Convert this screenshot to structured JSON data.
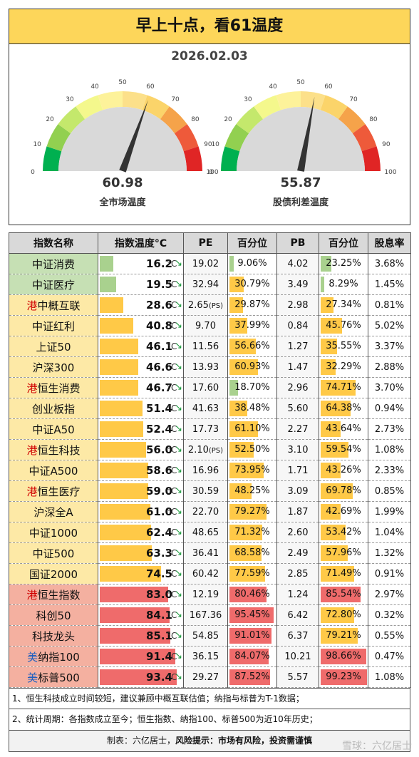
{
  "title": "早上十点，看61温度",
  "date": "2026.02.03",
  "chart_data": [
    {
      "type": "gauge",
      "value": 60.98,
      "label": "全市场温度",
      "ticks": [
        0,
        10,
        20,
        30,
        40,
        50,
        60,
        70,
        80,
        90,
        100
      ]
    },
    {
      "type": "gauge",
      "value": 55.87,
      "label": "股债利差温度",
      "ticks": [
        0,
        10,
        20,
        30,
        40,
        50,
        60,
        70,
        80,
        90,
        100
      ]
    },
    {
      "type": "table",
      "headers": [
        "指数名称",
        "指数温度°C",
        "PE",
        "百分位",
        "PB",
        "百分位",
        "股息率"
      ],
      "temp_unit": "°C",
      "rows": [
        {
          "prefix": "",
          "name": "中证消费",
          "temp": 16.2,
          "pe": "19.02",
          "pe_tag": "",
          "pe_pct": 9.06,
          "pb": "4.02",
          "pb_pct": 23.25,
          "dy": "3.68%"
        },
        {
          "prefix": "",
          "name": "中证医疗",
          "temp": 19.5,
          "pe": "32.94",
          "pe_tag": "",
          "pe_pct": 30.79,
          "pb": "3.49",
          "pb_pct": 8.29,
          "dy": "1.45%"
        },
        {
          "prefix": "港",
          "name": "中概互联",
          "temp": 28.6,
          "pe": "2.65",
          "pe_tag": "(PS)",
          "pe_pct": 29.87,
          "pb": "2.98",
          "pb_pct": 27.34,
          "dy": "0.81%"
        },
        {
          "prefix": "",
          "name": "中证红利",
          "temp": 40.8,
          "pe": "9.70",
          "pe_tag": "",
          "pe_pct": 37.99,
          "pb": "0.84",
          "pb_pct": 45.76,
          "dy": "5.02%"
        },
        {
          "prefix": "",
          "name": "上证50",
          "temp": 46.1,
          "pe": "11.56",
          "pe_tag": "",
          "pe_pct": 56.66,
          "pb": "1.27",
          "pb_pct": 35.55,
          "dy": "3.37%"
        },
        {
          "prefix": "",
          "name": "沪深300",
          "temp": 46.6,
          "pe": "13.93",
          "pe_tag": "",
          "pe_pct": 60.93,
          "pb": "1.47",
          "pb_pct": 32.29,
          "dy": "2.88%"
        },
        {
          "prefix": "港",
          "name": "恒生消费",
          "temp": 46.7,
          "pe": "17.60",
          "pe_tag": "",
          "pe_pct": 18.7,
          "pb": "2.96",
          "pb_pct": 74.71,
          "dy": "3.70%"
        },
        {
          "prefix": "",
          "name": "创业板指",
          "temp": 51.4,
          "pe": "41.63",
          "pe_tag": "",
          "pe_pct": 38.48,
          "pb": "5.60",
          "pb_pct": 64.38,
          "dy": "0.94%"
        },
        {
          "prefix": "",
          "name": "中证A50",
          "temp": 52.4,
          "pe": "17.73",
          "pe_tag": "",
          "pe_pct": 61.1,
          "pb": "2.27",
          "pb_pct": 43.64,
          "dy": "2.73%"
        },
        {
          "prefix": "港",
          "name": "恒生科技",
          "temp": 56.0,
          "pe": "2.10",
          "pe_tag": "(PS)",
          "pe_pct": 52.5,
          "pb": "3.10",
          "pb_pct": 59.54,
          "dy": "1.08%"
        },
        {
          "prefix": "",
          "name": "中证A500",
          "temp": 58.6,
          "pe": "16.96",
          "pe_tag": "",
          "pe_pct": 73.95,
          "pb": "1.71",
          "pb_pct": 43.26,
          "dy": "2.33%"
        },
        {
          "prefix": "港",
          "name": "恒生医疗",
          "temp": 59.0,
          "pe": "30.59",
          "pe_tag": "",
          "pe_pct": 48.25,
          "pb": "3.09",
          "pb_pct": 69.78,
          "dy": "0.85%"
        },
        {
          "prefix": "",
          "name": "沪深全A",
          "temp": 61.0,
          "pe": "22.70",
          "pe_tag": "",
          "pe_pct": 79.27,
          "pb": "1.87",
          "pb_pct": 42.69,
          "dy": "1.99%"
        },
        {
          "prefix": "",
          "name": "中证1000",
          "temp": 62.4,
          "pe": "48.65",
          "pe_tag": "",
          "pe_pct": 71.32,
          "pb": "2.60",
          "pb_pct": 53.42,
          "dy": "1.04%"
        },
        {
          "prefix": "",
          "name": "中证500",
          "temp": 63.3,
          "pe": "36.41",
          "pe_tag": "",
          "pe_pct": 68.58,
          "pb": "2.49",
          "pb_pct": 57.96,
          "dy": "1.32%"
        },
        {
          "prefix": "",
          "name": "国证2000",
          "temp": 74.5,
          "pe": "60.42",
          "pe_tag": "",
          "pe_pct": 77.59,
          "pb": "2.85",
          "pb_pct": 71.49,
          "dy": "0.91%"
        },
        {
          "prefix": "港",
          "name": "恒生指数",
          "temp": 83.0,
          "pe": "12.19",
          "pe_tag": "",
          "pe_pct": 80.46,
          "pb": "1.24",
          "pb_pct": 85.54,
          "dy": "2.97%"
        },
        {
          "prefix": "",
          "name": "科创50",
          "temp": 84.1,
          "pe": "167.36",
          "pe_tag": "",
          "pe_pct": 95.45,
          "pb": "6.42",
          "pb_pct": 72.8,
          "dy": "0.32%"
        },
        {
          "prefix": "",
          "name": "科技龙头",
          "temp": 85.1,
          "pe": "54.85",
          "pe_tag": "",
          "pe_pct": 91.01,
          "pb": "6.37",
          "pb_pct": 79.21,
          "dy": "0.55%"
        },
        {
          "prefix": "美",
          "name": "纳指100",
          "temp": 91.4,
          "pe": "36.15",
          "pe_tag": "",
          "pe_pct": 84.07,
          "pb": "10.21",
          "pb_pct": 98.66,
          "dy": "0.47%"
        },
        {
          "prefix": "美",
          "name": "标普500",
          "temp": 93.4,
          "pe": "29.27",
          "pe_tag": "",
          "pe_pct": 87.52,
          "pb": "5.57",
          "pb_pct": 99.23,
          "dy": "1.08%"
        }
      ]
    }
  ],
  "colors": {
    "cold": "#c6e0b4",
    "neutral": "#fde9a6",
    "hot": "#f4b0a0",
    "bar_cold": "#a9d18e",
    "bar_mid": "#ffc947",
    "bar_hot": "#ef6b6b",
    "prefix_red": "#d00000",
    "prefix_blue": "#1f5fbf"
  },
  "notes": [
    "1、恒生科技成立时间较短，建议兼顾中概互联估值；纳指与标普为T-1数据；",
    "2、统计周期：各指数成立至今；恒生指数、纳指100、标普500为近10年历史；"
  ],
  "footer": {
    "maker": "制表：六亿居士，",
    "risk_label": "风险提示：",
    "risk_text": "市场有风险，投资需谨慎"
  },
  "watermark": "雪球：六亿居士"
}
